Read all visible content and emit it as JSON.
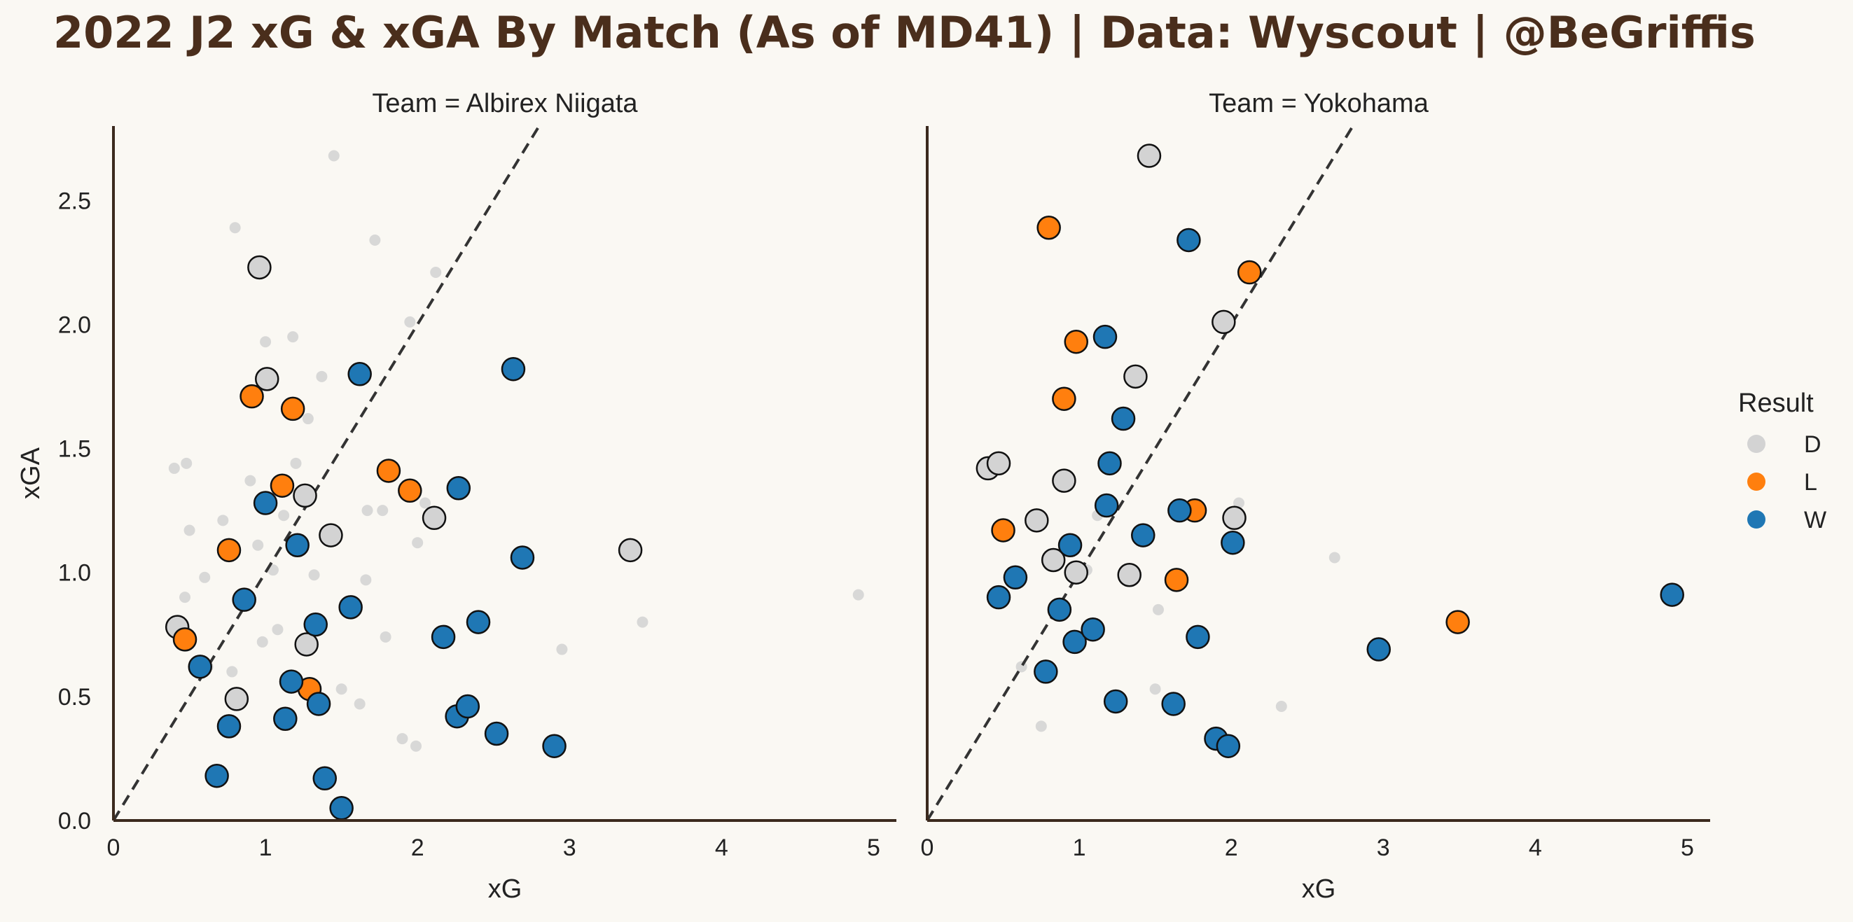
{
  "title": "2022 J2 xG & xGA By Match (As of MD41) | Data: Wyscout | @BeGriffis",
  "chart_data": {
    "type": "scatter",
    "xlabel": "xG",
    "ylabel": "xGA",
    "xlim": [
      0,
      5.15
    ],
    "ylim": [
      0,
      2.8
    ],
    "xticks": [
      "0",
      "1",
      "2",
      "3",
      "4",
      "5"
    ],
    "yticks": [
      "0.0",
      "0.5",
      "1.0",
      "1.5",
      "2.0",
      "2.5"
    ],
    "legend": {
      "title": "Result",
      "position": "right",
      "entries": [
        {
          "label": "D",
          "color": "#d3d3d3"
        },
        {
          "label": "L",
          "color": "#ff7f0e"
        },
        {
          "label": "W",
          "color": "#1f77b4"
        }
      ]
    },
    "reference_line": "y = x (dashed)",
    "grid": false,
    "colors": {
      "D": "#d3d3d3",
      "L": "#ff7f0e",
      "W": "#1f77b4",
      "background_points": "#cfcfcf",
      "axis": "#3b2a1e"
    },
    "league_background_points": [
      [
        0.4,
        1.42
      ],
      [
        0.48,
        1.44
      ],
      [
        0.5,
        1.17
      ],
      [
        0.6,
        0.98
      ],
      [
        0.47,
        0.9
      ],
      [
        0.62,
        0.62
      ],
      [
        0.78,
        0.6
      ],
      [
        0.72,
        1.21
      ],
      [
        0.8,
        2.39
      ],
      [
        0.9,
        1.37
      ],
      [
        0.95,
        1.11
      ],
      [
        0.98,
        0.72
      ],
      [
        1.0,
        1.93
      ],
      [
        1.05,
        1.01
      ],
      [
        1.08,
        0.77
      ],
      [
        1.12,
        1.23
      ],
      [
        1.18,
        1.95
      ],
      [
        1.2,
        1.44
      ],
      [
        1.28,
        1.62
      ],
      [
        1.32,
        0.99
      ],
      [
        1.37,
        1.79
      ],
      [
        1.45,
        2.68
      ],
      [
        1.5,
        0.53
      ],
      [
        1.62,
        0.47
      ],
      [
        1.66,
        0.97
      ],
      [
        1.67,
        1.25
      ],
      [
        1.72,
        2.34
      ],
      [
        1.77,
        1.25
      ],
      [
        1.79,
        0.74
      ],
      [
        1.9,
        0.33
      ],
      [
        1.95,
        2.01
      ],
      [
        1.99,
        0.3
      ],
      [
        2.0,
        1.12
      ],
      [
        2.05,
        1.28
      ],
      [
        2.12,
        2.21
      ],
      [
        2.33,
        0.46
      ],
      [
        2.95,
        0.69
      ],
      [
        3.48,
        0.8
      ],
      [
        4.9,
        0.91
      ],
      [
        2.68,
        1.06
      ],
      [
        0.75,
        0.38
      ],
      [
        1.52,
        0.85
      ]
    ],
    "panels": [
      {
        "team": "Team = Albirex Niigata",
        "series": [
          {
            "name": "D",
            "points": [
              [
                0.42,
                0.78
              ],
              [
                0.81,
                0.49
              ],
              [
                0.96,
                2.23
              ],
              [
                1.01,
                1.78
              ],
              [
                1.26,
                1.31
              ],
              [
                1.27,
                0.71
              ],
              [
                1.43,
                1.15
              ],
              [
                2.11,
                1.22
              ],
              [
                3.4,
                1.09
              ]
            ]
          },
          {
            "name": "L",
            "points": [
              [
                0.47,
                0.73
              ],
              [
                0.76,
                1.09
              ],
              [
                0.91,
                1.71
              ],
              [
                1.11,
                1.35
              ],
              [
                1.18,
                1.66
              ],
              [
                1.29,
                0.53
              ],
              [
                1.81,
                1.41
              ],
              [
                1.95,
                1.33
              ]
            ]
          },
          {
            "name": "W",
            "points": [
              [
                0.57,
                0.62
              ],
              [
                0.68,
                0.18
              ],
              [
                0.76,
                0.38
              ],
              [
                0.86,
                0.89
              ],
              [
                1.0,
                1.28
              ],
              [
                1.13,
                0.41
              ],
              [
                1.17,
                0.56
              ],
              [
                1.21,
                1.11
              ],
              [
                1.33,
                0.79
              ],
              [
                1.35,
                0.47
              ],
              [
                1.39,
                0.17
              ],
              [
                1.5,
                0.05
              ],
              [
                1.56,
                0.86
              ],
              [
                1.62,
                1.8
              ],
              [
                2.17,
                0.74
              ],
              [
                2.26,
                0.42
              ],
              [
                2.27,
                1.34
              ],
              [
                2.33,
                0.46
              ],
              [
                2.4,
                0.8
              ],
              [
                2.52,
                0.35
              ],
              [
                2.63,
                1.82
              ],
              [
                2.69,
                1.06
              ],
              [
                2.9,
                0.3
              ]
            ]
          }
        ]
      },
      {
        "team": "Team = Yokohama",
        "series": [
          {
            "name": "D",
            "points": [
              [
                0.4,
                1.42
              ],
              [
                0.47,
                1.44
              ],
              [
                0.72,
                1.21
              ],
              [
                0.83,
                1.05
              ],
              [
                0.9,
                1.37
              ],
              [
                0.98,
                1.0
              ],
              [
                1.33,
                0.99
              ],
              [
                1.37,
                1.79
              ],
              [
                1.46,
                2.68
              ],
              [
                1.95,
                2.01
              ],
              [
                2.02,
                1.22
              ]
            ]
          },
          {
            "name": "L",
            "points": [
              [
                0.5,
                1.17
              ],
              [
                0.8,
                2.39
              ],
              [
                0.9,
                1.7
              ],
              [
                0.98,
                1.93
              ],
              [
                1.64,
                0.97
              ],
              [
                1.76,
                1.25
              ],
              [
                2.12,
                2.21
              ],
              [
                3.49,
                0.8
              ]
            ]
          },
          {
            "name": "W",
            "points": [
              [
                0.47,
                0.9
              ],
              [
                0.58,
                0.98
              ],
              [
                0.78,
                0.6
              ],
              [
                0.87,
                0.85
              ],
              [
                0.94,
                1.11
              ],
              [
                0.97,
                0.72
              ],
              [
                1.09,
                0.77
              ],
              [
                1.17,
                1.95
              ],
              [
                1.18,
                1.27
              ],
              [
                1.2,
                1.44
              ],
              [
                1.24,
                0.48
              ],
              [
                1.29,
                1.62
              ],
              [
                1.42,
                1.15
              ],
              [
                1.62,
                0.47
              ],
              [
                1.66,
                1.25
              ],
              [
                1.72,
                2.34
              ],
              [
                1.78,
                0.74
              ],
              [
                1.9,
                0.33
              ],
              [
                1.98,
                0.3
              ],
              [
                2.01,
                1.12
              ],
              [
                2.97,
                0.69
              ],
              [
                4.9,
                0.91
              ]
            ]
          }
        ]
      }
    ]
  }
}
